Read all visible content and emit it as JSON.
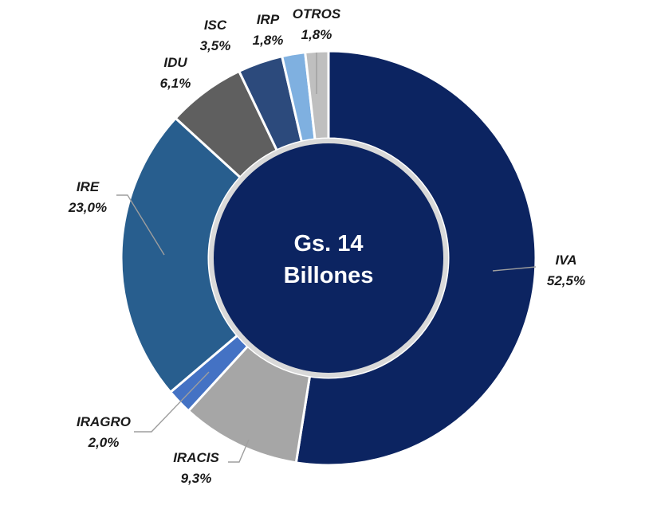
{
  "chart_data": {
    "type": "pie",
    "variant": "donut",
    "center_label": [
      "Gs. 14",
      "Billones"
    ],
    "slices": [
      {
        "name": "IVA",
        "value_label": "52,5%",
        "value": 52.5,
        "color": "#0c2461"
      },
      {
        "name": "IRACIS",
        "value_label": "9,3%",
        "value": 9.3,
        "color": "#a6a6a6"
      },
      {
        "name": "IRAGRO",
        "value_label": "2,0%",
        "value": 2.0,
        "color": "#4472c4"
      },
      {
        "name": "IRE",
        "value_label": "23,0%",
        "value": 23.0,
        "color": "#285e8e"
      },
      {
        "name": "IDU",
        "value_label": "6,1%",
        "value": 6.1,
        "color": "#5f5f5f"
      },
      {
        "name": "ISC",
        "value_label": "3,5%",
        "value": 3.5,
        "color": "#2c4a7c"
      },
      {
        "name": "IRP",
        "value_label": "1,8%",
        "value": 1.8,
        "color": "#7fb0e0"
      },
      {
        "name": "OTROS",
        "value_label": "1,8%",
        "value": 1.8,
        "color": "#bfbfbf"
      }
    ],
    "center_color": "#0c2461",
    "center_ring_color": "#d9d9d9"
  }
}
